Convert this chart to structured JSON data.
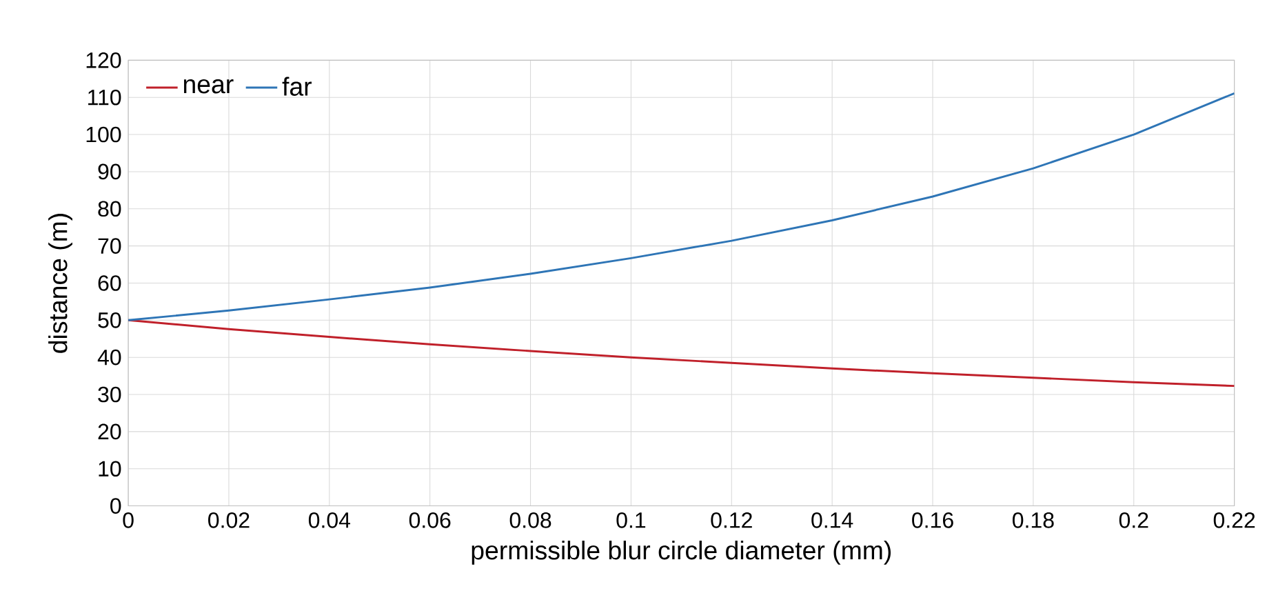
{
  "chart_data": {
    "type": "line",
    "xlabel": "permissible blur circle diameter (mm)",
    "ylabel": "distance (m)",
    "x": [
      0,
      0.02,
      0.04,
      0.06,
      0.08,
      0.1,
      0.12,
      0.14,
      0.16,
      0.18,
      0.2,
      0.22
    ],
    "series": [
      {
        "name": "near",
        "color": "#c0202a",
        "values": [
          50,
          47.6,
          45.5,
          43.5,
          41.7,
          40,
          38.5,
          37,
          35.7,
          34.5,
          33.3,
          32.3
        ]
      },
      {
        "name": "far",
        "color": "#2e75b6",
        "values": [
          50,
          52.6,
          55.6,
          58.8,
          62.5,
          66.7,
          71.4,
          76.9,
          83.3,
          90.9,
          100,
          111.1
        ]
      }
    ],
    "xlim": [
      0,
      0.22
    ],
    "xticks": [
      0,
      0.02,
      0.04,
      0.06,
      0.08,
      0.1,
      0.12,
      0.14,
      0.16,
      0.18,
      0.2,
      0.22
    ],
    "ylim": [
      0,
      120
    ],
    "yticks": [
      0,
      10,
      20,
      30,
      40,
      50,
      60,
      70,
      80,
      90,
      100,
      110,
      120
    ],
    "grid": true,
    "legend": "top left",
    "marker": "none",
    "line_style": "solid"
  }
}
